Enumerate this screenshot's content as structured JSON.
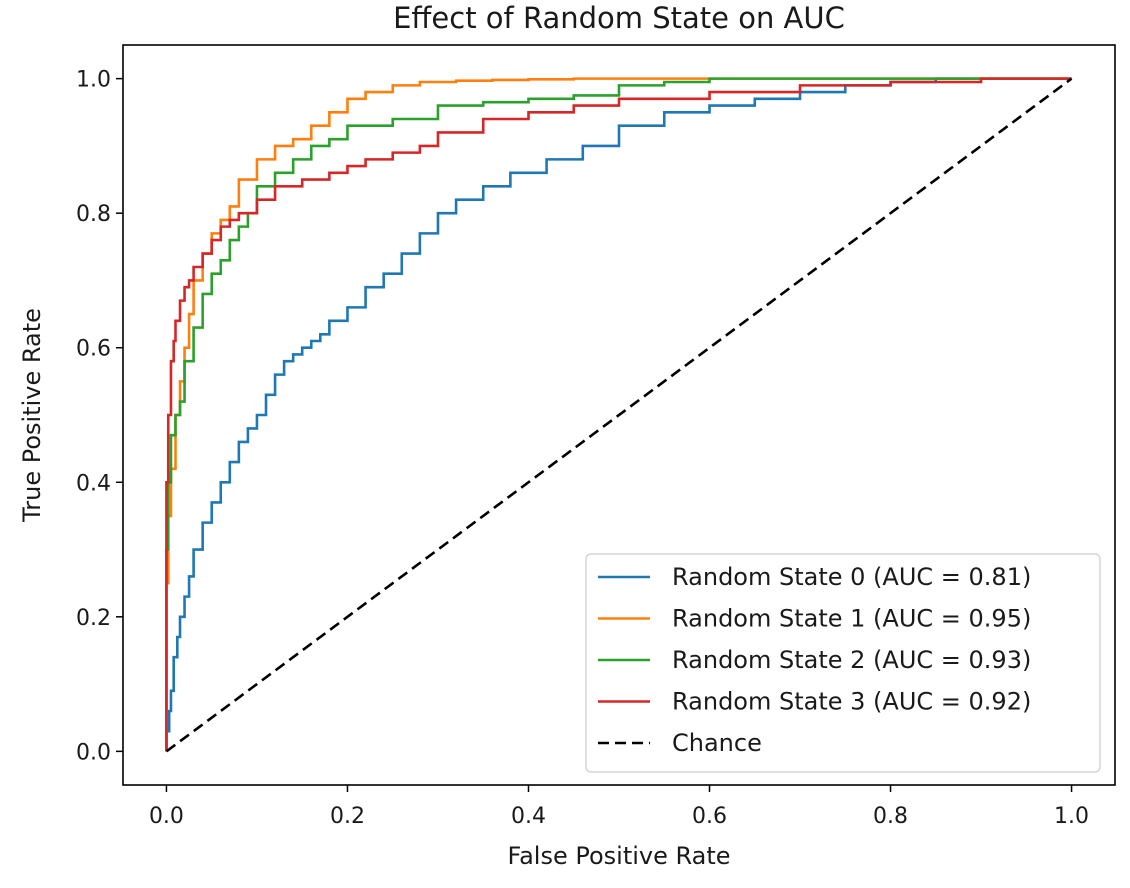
{
  "chart_data": {
    "type": "line",
    "title": "Effect of Random State on AUC",
    "xlabel": "False Positive Rate",
    "ylabel": "True Positive Rate",
    "xlim": [
      -0.048,
      1.048
    ],
    "ylim": [
      -0.05,
      1.05
    ],
    "xticks": [
      0.0,
      0.2,
      0.4,
      0.6,
      0.8,
      1.0
    ],
    "yticks": [
      0.0,
      0.2,
      0.4,
      0.6,
      0.8,
      1.0
    ],
    "xtick_labels": [
      "0.0",
      "0.2",
      "0.4",
      "0.6",
      "0.8",
      "1.0"
    ],
    "ytick_labels": [
      "0.0",
      "0.2",
      "0.4",
      "0.6",
      "0.8",
      "1.0"
    ],
    "grid": false,
    "legend_position": "lower-right",
    "series": [
      {
        "name": "Random State 0 (AUC = 0.81)",
        "color": "#1f77b4",
        "style": "solid",
        "x": [
          0,
          0.003,
          0.005,
          0.008,
          0.012,
          0.015,
          0.02,
          0.025,
          0.03,
          0.04,
          0.05,
          0.06,
          0.07,
          0.08,
          0.09,
          0.1,
          0.11,
          0.12,
          0.13,
          0.14,
          0.15,
          0.16,
          0.17,
          0.18,
          0.2,
          0.22,
          0.24,
          0.26,
          0.28,
          0.3,
          0.32,
          0.35,
          0.38,
          0.42,
          0.46,
          0.5,
          0.55,
          0.6,
          0.65,
          0.7,
          0.75,
          0.8,
          0.85,
          0.9,
          0.95,
          1.0
        ],
        "y": [
          0,
          0.03,
          0.06,
          0.09,
          0.14,
          0.17,
          0.2,
          0.23,
          0.26,
          0.3,
          0.34,
          0.37,
          0.4,
          0.43,
          0.46,
          0.48,
          0.5,
          0.53,
          0.56,
          0.58,
          0.59,
          0.6,
          0.61,
          0.62,
          0.64,
          0.66,
          0.69,
          0.71,
          0.74,
          0.77,
          0.8,
          0.82,
          0.84,
          0.86,
          0.88,
          0.9,
          0.93,
          0.95,
          0.96,
          0.97,
          0.98,
          0.99,
          0.995,
          1.0,
          1.0,
          1.0
        ]
      },
      {
        "name": "Random State 1 (AUC = 0.95)",
        "color": "#ff7f0e",
        "style": "solid",
        "x": [
          0,
          0.002,
          0.005,
          0.01,
          0.015,
          0.02,
          0.025,
          0.03,
          0.04,
          0.05,
          0.06,
          0.07,
          0.08,
          0.1,
          0.12,
          0.14,
          0.16,
          0.18,
          0.2,
          0.22,
          0.25,
          0.28,
          0.32,
          0.36,
          0.4,
          0.45,
          0.5,
          0.6,
          0.7,
          0.8,
          0.9,
          1.0
        ],
        "y": [
          0,
          0.25,
          0.35,
          0.42,
          0.5,
          0.55,
          0.6,
          0.65,
          0.7,
          0.74,
          0.77,
          0.79,
          0.81,
          0.85,
          0.88,
          0.9,
          0.91,
          0.93,
          0.95,
          0.97,
          0.98,
          0.99,
          0.995,
          0.997,
          0.998,
          0.999,
          1.0,
          1.0,
          1.0,
          1.0,
          1.0,
          1.0
        ]
      },
      {
        "name": "Random State 2 (AUC = 0.93)",
        "color": "#2ca02c",
        "style": "solid",
        "x": [
          0,
          0.002,
          0.005,
          0.01,
          0.015,
          0.02,
          0.03,
          0.04,
          0.05,
          0.06,
          0.07,
          0.08,
          0.09,
          0.1,
          0.12,
          0.14,
          0.16,
          0.18,
          0.2,
          0.25,
          0.3,
          0.35,
          0.4,
          0.45,
          0.5,
          0.55,
          0.6,
          0.7,
          0.8,
          0.9,
          1.0
        ],
        "y": [
          0,
          0.3,
          0.4,
          0.47,
          0.5,
          0.52,
          0.58,
          0.63,
          0.68,
          0.71,
          0.73,
          0.76,
          0.78,
          0.8,
          0.84,
          0.86,
          0.88,
          0.9,
          0.91,
          0.93,
          0.94,
          0.96,
          0.965,
          0.97,
          0.975,
          0.99,
          0.995,
          1.0,
          1.0,
          1.0,
          1.0
        ]
      },
      {
        "name": "Random State 3 (AUC = 0.92)",
        "color": "#d62728",
        "style": "solid",
        "x": [
          0,
          0.002,
          0.005,
          0.008,
          0.01,
          0.015,
          0.02,
          0.025,
          0.03,
          0.04,
          0.05,
          0.06,
          0.07,
          0.08,
          0.1,
          0.12,
          0.15,
          0.18,
          0.2,
          0.22,
          0.25,
          0.28,
          0.3,
          0.35,
          0.4,
          0.45,
          0.5,
          0.6,
          0.7,
          0.8,
          0.9,
          1.0
        ],
        "y": [
          0,
          0.4,
          0.5,
          0.58,
          0.61,
          0.64,
          0.67,
          0.69,
          0.7,
          0.72,
          0.74,
          0.76,
          0.78,
          0.79,
          0.8,
          0.82,
          0.84,
          0.85,
          0.86,
          0.87,
          0.88,
          0.89,
          0.9,
          0.92,
          0.94,
          0.95,
          0.96,
          0.97,
          0.98,
          0.99,
          0.995,
          1.0
        ]
      },
      {
        "name": "Chance",
        "color": "#000000",
        "style": "dashed",
        "x": [
          0,
          1
        ],
        "y": [
          0,
          1
        ]
      }
    ]
  }
}
